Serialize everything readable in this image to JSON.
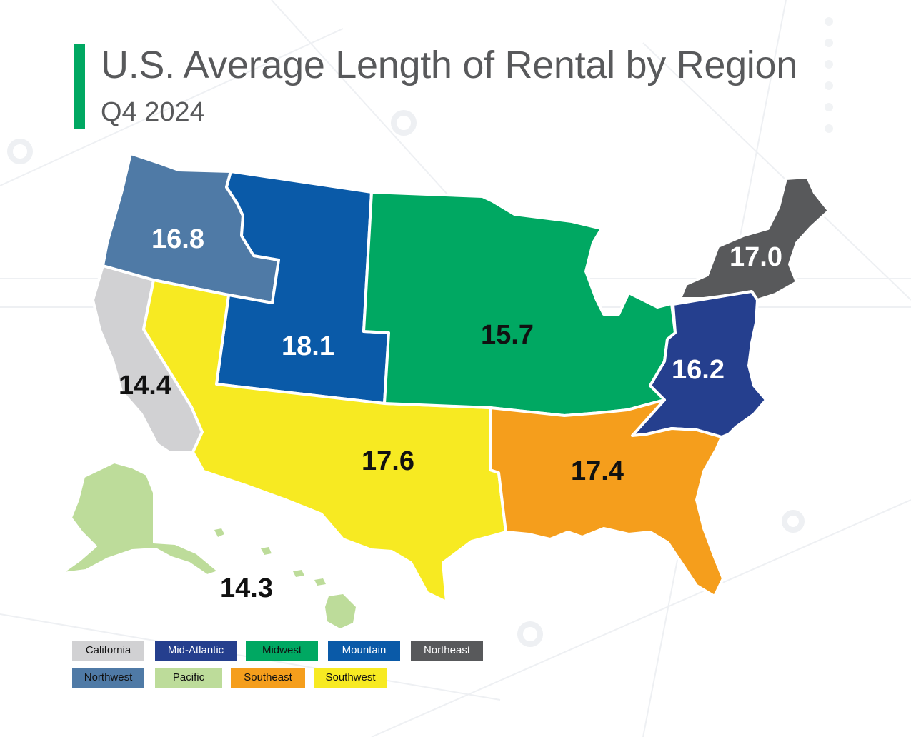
{
  "title": "U.S. Average Length of Rental by Region",
  "subtitle": "Q4 2024",
  "colors": {
    "accent": "#00a862",
    "california": "#d1d1d3",
    "mid_atlantic": "#253f8e",
    "midwest": "#00a862",
    "mountain": "#0a5aa8",
    "northeast": "#58595b",
    "northwest": "#4f7aa6",
    "pacific": "#bddc9a",
    "southeast": "#f59e1c",
    "southwest": "#f7ea22"
  },
  "regions": {
    "northwest": "16.8",
    "mountain": "18.1",
    "midwest": "15.7",
    "northeast": "17.0",
    "mid_atlantic": "16.2",
    "california": "14.4",
    "southwest": "17.6",
    "southeast": "17.4",
    "pacific": "14.3"
  },
  "legend": [
    "California",
    "Mid-Atlantic",
    "Midwest",
    "Mountain",
    "Northeast",
    "Northwest",
    "Pacific",
    "Southeast",
    "Southwest"
  ]
}
